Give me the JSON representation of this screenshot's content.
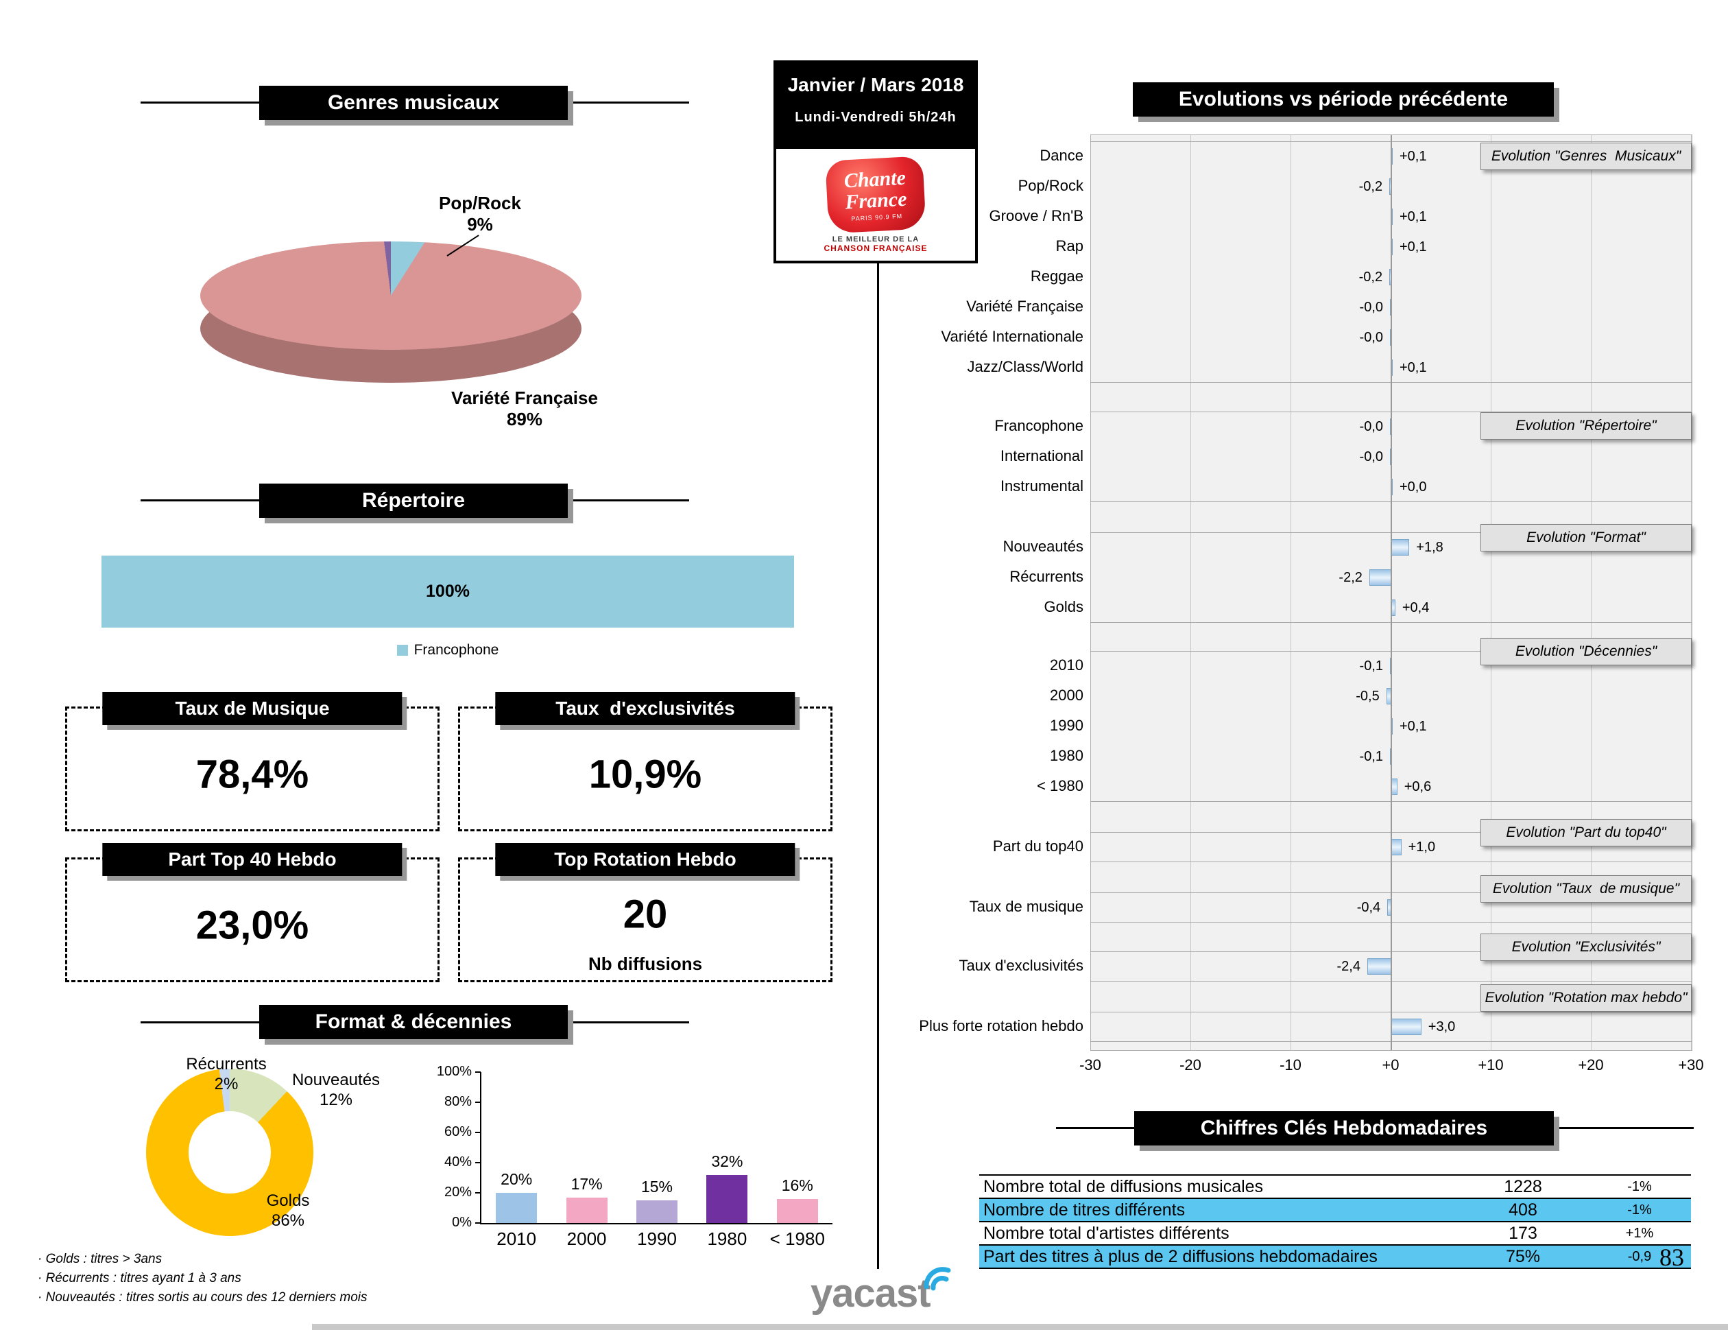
{
  "header_boxes": {
    "genres": "Genres musicaux",
    "repertoire": "Répertoire",
    "format_decennies": "Format & décennies",
    "evolutions": "Evolutions vs période précédente",
    "chiffres_cles": "Chiffres Clés Hebdomadaires"
  },
  "period_box": {
    "title": "Janvier / Mars 2018",
    "subtitle": "Lundi-Vendredi 5h/24h",
    "logo": {
      "line1": "Chante",
      "line2": "France",
      "station": "PARIS 90.9 FM",
      "tagline1": "LE MEILLEUR DE LA",
      "tagline2": "CHANSON FRANÇAISE"
    }
  },
  "kpi_boxes": [
    {
      "title": "Taux de Musique",
      "value": "78,4%"
    },
    {
      "title": "Taux  d'exclusivités",
      "value": "10,9%"
    },
    {
      "title": "Part Top 40 Hebdo",
      "value": "23,0%"
    },
    {
      "title": "Top Rotation Hebdo",
      "value": "20",
      "subtitle": "Nb diffusions"
    }
  ],
  "footnotes": [
    "· Golds : titres > 3ans",
    "· Récurrents : titres ayant 1 à 3 ans",
    "· Nouveautés  : titres sortis au cours des 12 derniers mois"
  ],
  "footer": {
    "brand": "yacast",
    "page_number": "83"
  },
  "colors": {
    "accent_blue": "#93CDDD",
    "pie_rose": "#D99694",
    "pie_purple": "#8064A2",
    "donut_gold": "#FFC000",
    "donut_green": "#D7E4BC",
    "donut_recurrents": "#C6D9F1",
    "table_highlight": "#5BC6F0",
    "evolution_bar": "#9DC3E6",
    "logo_red": "#E3242B"
  },
  "chart_data": [
    {
      "id": "genres_pie",
      "type": "pie",
      "title": "Genres musicaux",
      "slices": [
        {
          "label": "Variété Française",
          "pct_text": "89%",
          "value": 89,
          "color": "#D99694"
        },
        {
          "label": "Pop/Rock",
          "pct_text": "9%",
          "value": 9,
          "color": "#93CDDD"
        },
        {
          "label": "",
          "pct_text": "",
          "value": 2,
          "color": "#8064A2"
        }
      ]
    },
    {
      "id": "repertoire_bar",
      "type": "bar",
      "title": "Répertoire",
      "categories": [
        "Francophone"
      ],
      "values": [
        100
      ],
      "value_label": "100%",
      "legend": [
        "Francophone"
      ],
      "color": "#93CDDD"
    },
    {
      "id": "format_donut",
      "type": "pie",
      "title": "Format & décennies",
      "slices": [
        {
          "label": "Golds",
          "pct_text": "86%",
          "value": 86,
          "color": "#FFC000"
        },
        {
          "label": "Nouveautés",
          "pct_text": "12%",
          "value": 12,
          "color": "#D7E4BC"
        },
        {
          "label": "Récurrents",
          "pct_text": "2%",
          "value": 2,
          "color": "#C6D9F1"
        }
      ]
    },
    {
      "id": "decennies_bar",
      "type": "bar",
      "categories": [
        "2010",
        "2000",
        "1990",
        "1980",
        "< 1980"
      ],
      "values": [
        20,
        17,
        15,
        32,
        16
      ],
      "value_labels": [
        "20%",
        "17%",
        "15%",
        "32%",
        "16%"
      ],
      "colors": [
        "#9DC3E6",
        "#F4A7C3",
        "#B4A7D6",
        "#70309F",
        "#F4A7C3"
      ],
      "ylim": [
        0,
        100
      ],
      "yticks": [
        "0%",
        "20%",
        "40%",
        "60%",
        "80%",
        "100%"
      ]
    },
    {
      "id": "evolutions",
      "type": "bar",
      "orientation": "horizontal",
      "title": "Evolutions vs période précédente",
      "xlim": [
        -30,
        30
      ],
      "xticks": [
        "-30",
        "-20",
        "-10",
        "+0",
        "+10",
        "+20",
        "+30"
      ],
      "bar_color": "#9DC3E6",
      "groups": [
        {
          "box_label": "Evolution \"Genres  Musicaux\"",
          "rows": [
            {
              "label": "Dance",
              "value": 0.1,
              "text": "+0,1"
            },
            {
              "label": "Pop/Rock",
              "value": -0.2,
              "text": "-0,2"
            },
            {
              "label": "Groove / Rn'B",
              "value": 0.1,
              "text": "+0,1"
            },
            {
              "label": "Rap",
              "value": 0.1,
              "text": "+0,1"
            },
            {
              "label": "Reggae",
              "value": -0.2,
              "text": "-0,2"
            },
            {
              "label": "Variété Française",
              "value": -0.0,
              "text": "-0,0"
            },
            {
              "label": "Variété Internationale",
              "value": -0.0,
              "text": "-0,0"
            },
            {
              "label": "Jazz/Class/World",
              "value": 0.1,
              "text": "+0,1"
            }
          ]
        },
        {
          "box_label": "Evolution \"Répertoire\"",
          "rows": [
            {
              "label": "Francophone",
              "value": -0.0,
              "text": "-0,0"
            },
            {
              "label": "International",
              "value": -0.0,
              "text": "-0,0"
            },
            {
              "label": "Instrumental",
              "value": 0.0,
              "text": "+0,0"
            }
          ]
        },
        {
          "box_label": "Evolution \"Format\"",
          "rows": [
            {
              "label": "Nouveautés",
              "value": 1.8,
              "text": "+1,8"
            },
            {
              "label": "Récurrents",
              "value": -2.2,
              "text": "-2,2"
            },
            {
              "label": "Golds",
              "value": 0.4,
              "text": "+0,4"
            }
          ]
        },
        {
          "box_label": "Evolution \"Décennies\"",
          "rows": [
            {
              "label": "2010",
              "value": -0.1,
              "text": "-0,1"
            },
            {
              "label": "2000",
              "value": -0.5,
              "text": "-0,5"
            },
            {
              "label": "1990",
              "value": 0.1,
              "text": "+0,1"
            },
            {
              "label": "1980",
              "value": -0.1,
              "text": "-0,1"
            },
            {
              "label": "< 1980",
              "value": 0.6,
              "text": "+0,6"
            }
          ]
        },
        {
          "box_label": "Evolution \"Part du top40\"",
          "rows": [
            {
              "label": "Part du top40",
              "value": 1.0,
              "text": "+1,0"
            }
          ]
        },
        {
          "box_label": "Evolution \"Taux  de musique\"",
          "rows": [
            {
              "label": "Taux de musique",
              "value": -0.4,
              "text": "-0,4"
            }
          ]
        },
        {
          "box_label": "Evolution \"Exclusivités\"",
          "rows": [
            {
              "label": "Taux d'exclusivités",
              "value": -2.4,
              "text": "-2,4"
            }
          ]
        },
        {
          "box_label": "Evolution \"Rotation max hebdo\"",
          "rows": [
            {
              "label": "Plus forte rotation hebdo",
              "value": 3.0,
              "text": "+3,0"
            }
          ]
        }
      ]
    },
    {
      "id": "key_figures",
      "type": "table",
      "title": "Chiffres Clés Hebdomadaires",
      "rows": [
        {
          "label": "Nombre total de diffusions musicales",
          "value": "1228",
          "delta": "-1%",
          "highlight": false
        },
        {
          "label": "Nombre de titres différents",
          "value": "408",
          "delta": "-1%",
          "highlight": true
        },
        {
          "label": "Nombre total d'artistes différents",
          "value": "173",
          "delta": "+1%",
          "highlight": false
        },
        {
          "label": "Part des titres à plus de 2 diffusions hebdomadaires",
          "value": "75%",
          "delta": "-0,9",
          "highlight": true
        }
      ]
    }
  ]
}
